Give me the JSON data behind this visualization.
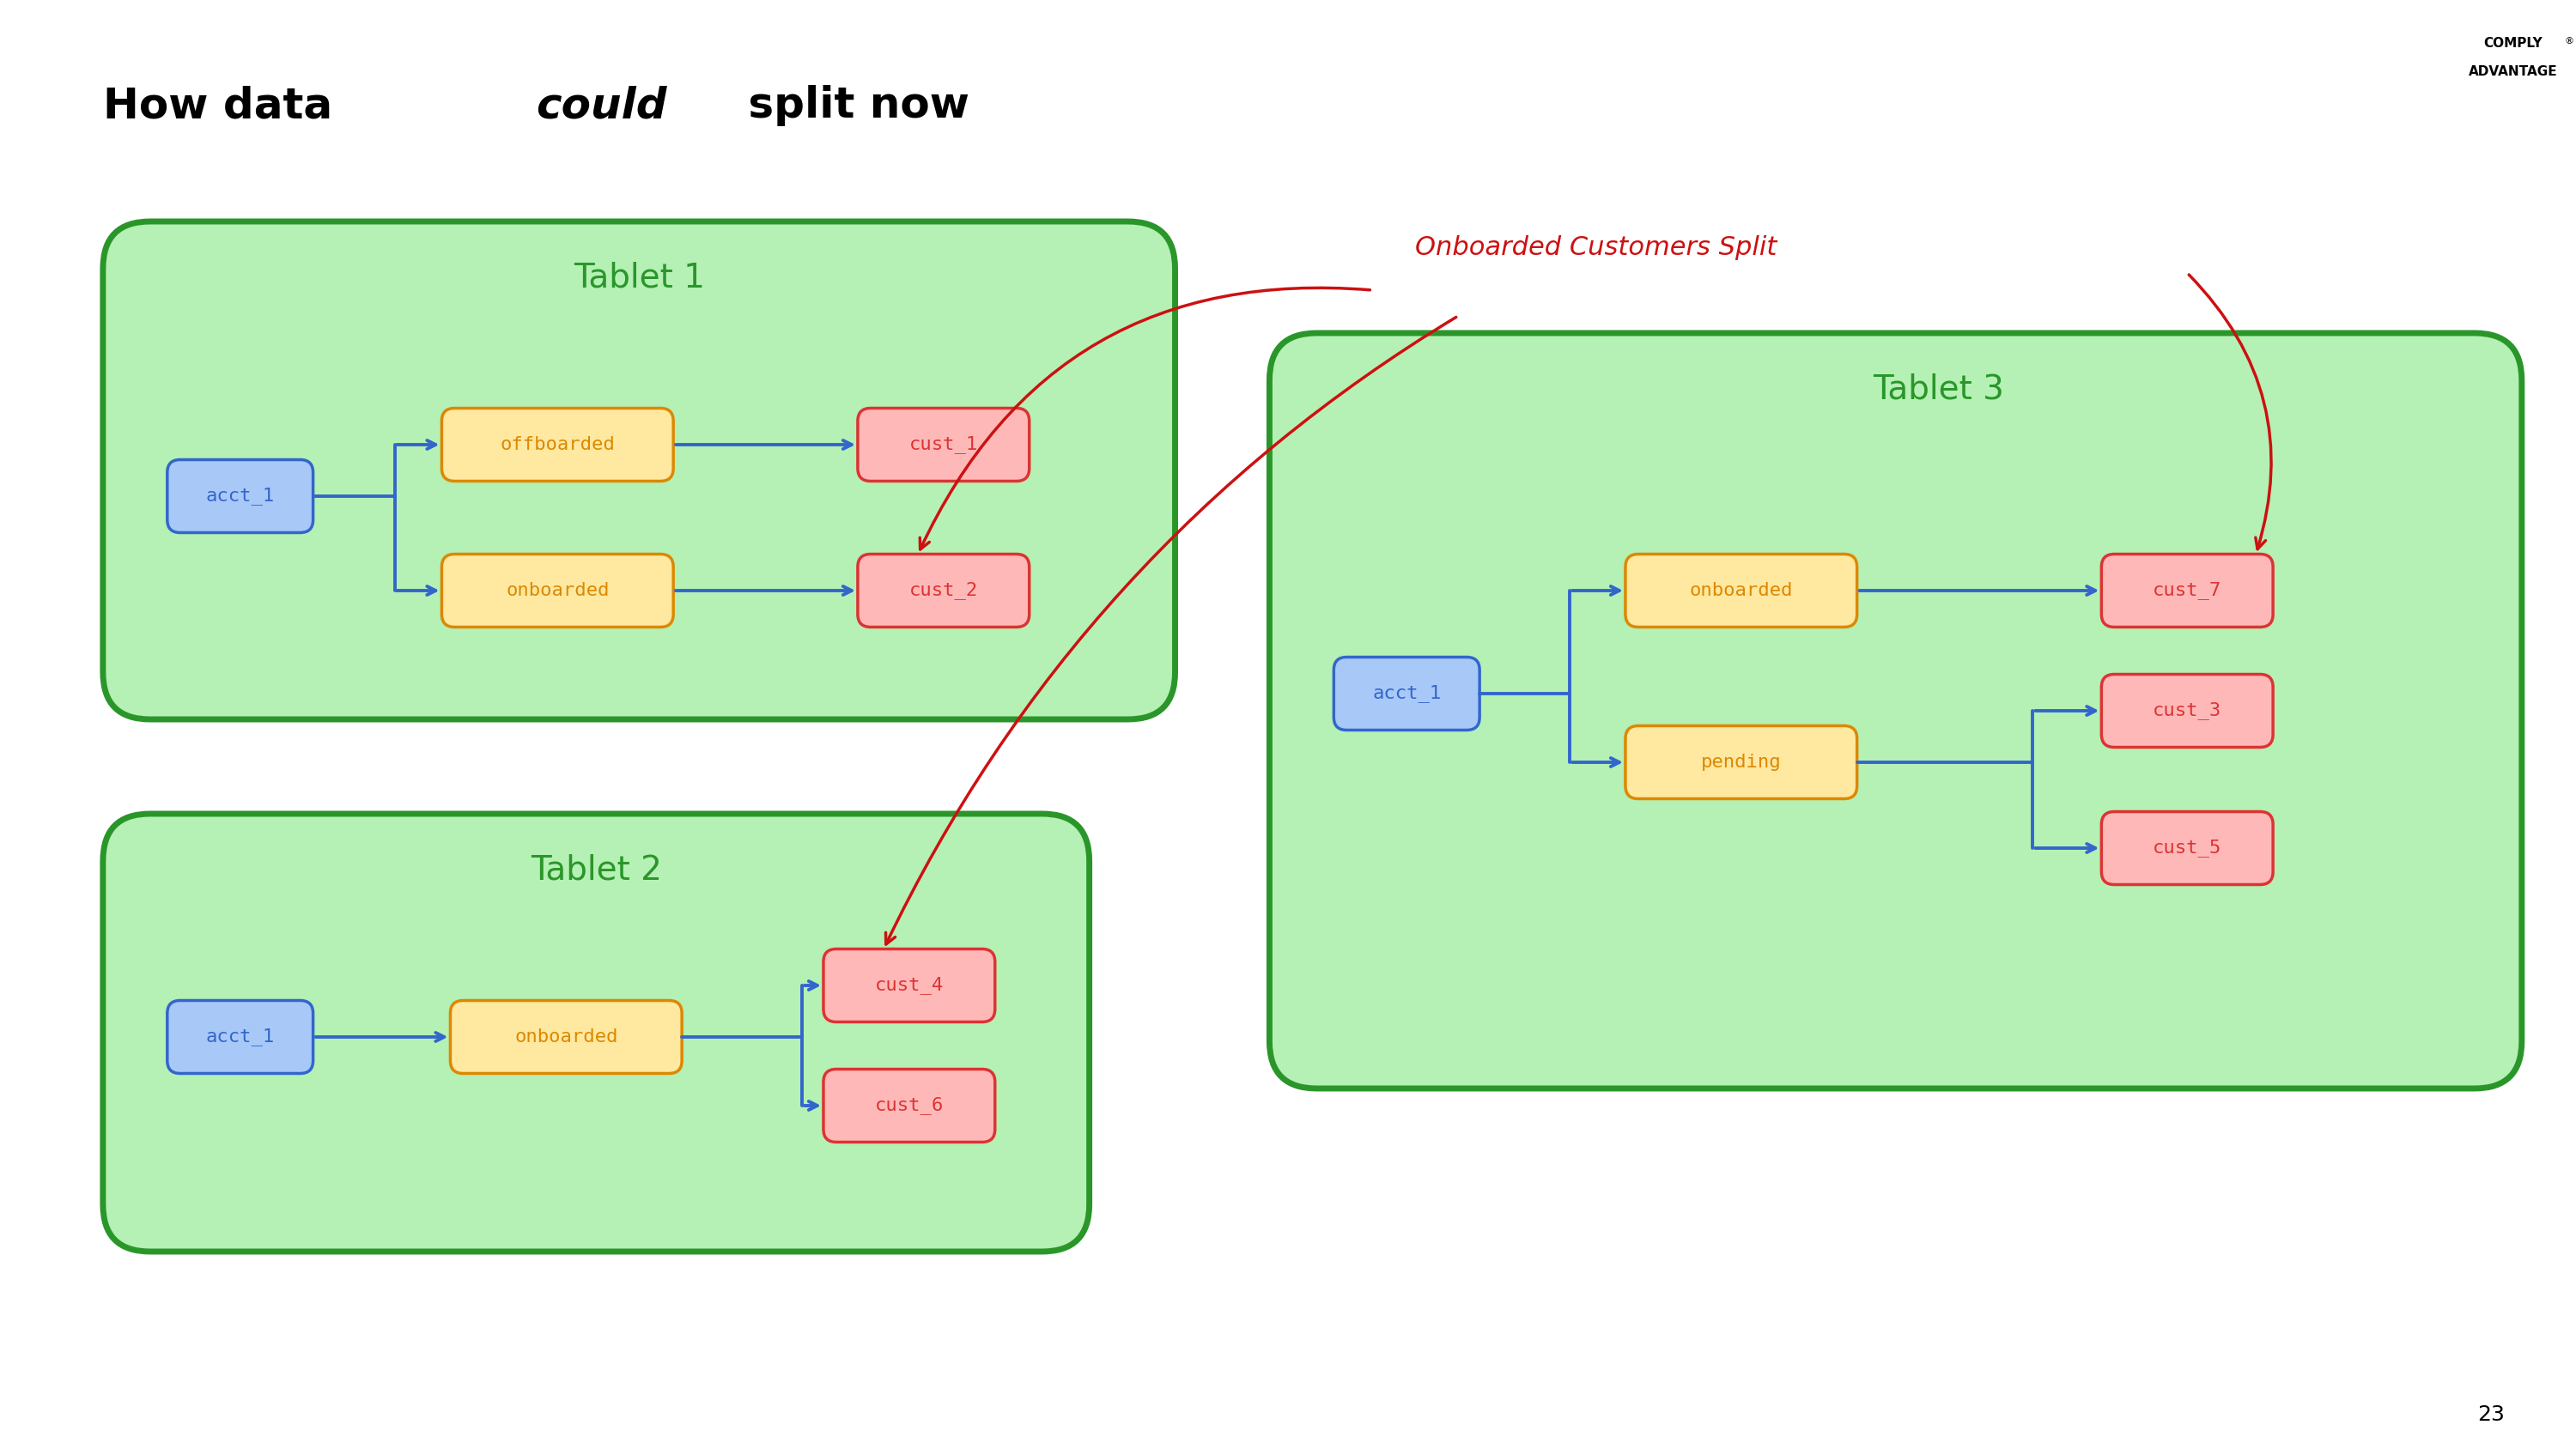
{
  "bg_color": "#ffffff",
  "tablet_fill": "#b5f0b5",
  "tablet_edge": "#2a962a",
  "node_blue_fill": "#a8c8f8",
  "node_blue_edge": "#3366cc",
  "node_yellow_fill": "#ffe8a0",
  "node_yellow_edge": "#dd8800",
  "node_pink_fill": "#ffb8b8",
  "node_pink_edge": "#dd3333",
  "arrow_blue": "#3366cc",
  "arrow_red": "#cc1111",
  "annotation_color": "#cc1111",
  "tablet_label_color": "#2a962a",
  "page_number": "23",
  "title_normal": "How data ",
  "title_italic": "could",
  "title_end": " split now"
}
